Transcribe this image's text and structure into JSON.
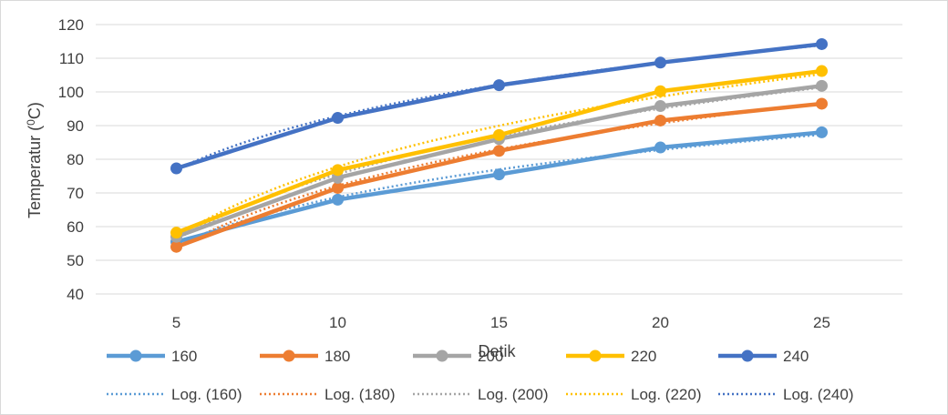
{
  "chart_data": {
    "type": "line",
    "title": "",
    "xlabel": "Detik",
    "ylabel": "Temperatur (0C)",
    "ylabel_parts": {
      "main": "Temperatur (",
      "sup": "0",
      "unit": "C)"
    },
    "categories": [
      "5",
      "10",
      "15",
      "20",
      "25"
    ],
    "ylim": [
      40,
      120
    ],
    "yticks": [
      40,
      50,
      60,
      70,
      80,
      90,
      100,
      110,
      120
    ],
    "grid": true,
    "legend_position": "bottom",
    "series": [
      {
        "name": "160",
        "color": "#5B9BD5",
        "values": [
          55.5,
          68,
          75.5,
          83.5,
          88
        ]
      },
      {
        "name": "180",
        "color": "#ED7D31",
        "values": [
          54,
          71.5,
          82.5,
          91.5,
          96.5
        ]
      },
      {
        "name": "200",
        "color": "#A5A5A5",
        "values": [
          57,
          74.5,
          86,
          95.8,
          101.8
        ]
      },
      {
        "name": "220",
        "color": "#FFC000",
        "values": [
          58.2,
          76.8,
          87.2,
          100.2,
          106.2
        ]
      },
      {
        "name": "240",
        "color": "#4472C4",
        "values": [
          77.3,
          92.3,
          102,
          108.7,
          114.2
        ]
      }
    ],
    "trendlines": [
      {
        "name": "Log. (160)",
        "color": "#5B9BD5",
        "type": "log"
      },
      {
        "name": "Log. (180)",
        "color": "#ED7D31",
        "type": "log"
      },
      {
        "name": "Log. (200)",
        "color": "#A5A5A5",
        "type": "log"
      },
      {
        "name": "Log. (220)",
        "color": "#FFC000",
        "type": "log"
      },
      {
        "name": "Log. (240)",
        "color": "#4472C4",
        "type": "log"
      }
    ]
  }
}
